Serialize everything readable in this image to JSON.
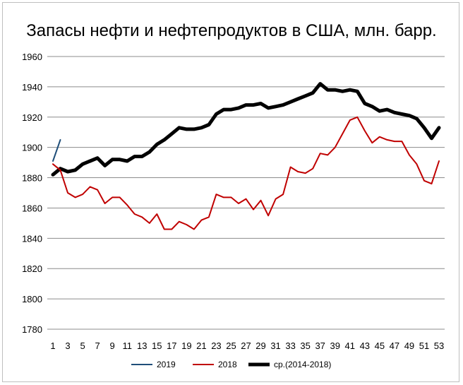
{
  "chart_data": {
    "type": "line",
    "title": "Запасы нефти и нефтепродуктов в США, млн. барр.",
    "xlabel": "",
    "ylabel": "",
    "ylim": [
      1780,
      1960
    ],
    "yticks": [
      1780,
      1800,
      1820,
      1840,
      1860,
      1880,
      1900,
      1920,
      1940,
      1960
    ],
    "xlim": [
      1,
      53
    ],
    "xticks": [
      1,
      3,
      5,
      7,
      9,
      11,
      13,
      15,
      17,
      19,
      21,
      23,
      25,
      27,
      29,
      31,
      33,
      35,
      37,
      39,
      41,
      43,
      45,
      47,
      49,
      51,
      53
    ],
    "grid": true,
    "legend": "bottom",
    "series": [
      {
        "name": "2019",
        "color": "#1f4e79",
        "width": 2,
        "x": [
          1,
          2
        ],
        "values": [
          1891,
          1905
        ]
      },
      {
        "name": "2018",
        "color": "#c00000",
        "width": 2,
        "x": [
          1,
          2,
          3,
          4,
          5,
          6,
          7,
          8,
          9,
          10,
          11,
          12,
          13,
          14,
          15,
          16,
          17,
          18,
          19,
          20,
          21,
          22,
          23,
          24,
          25,
          26,
          27,
          28,
          29,
          30,
          31,
          32,
          33,
          34,
          35,
          36,
          37,
          38,
          39,
          40,
          41,
          42,
          43,
          44,
          45,
          46,
          47,
          48,
          49,
          50,
          51,
          52,
          53
        ],
        "values": [
          1889,
          1885,
          1870,
          1867,
          1869,
          1874,
          1872,
          1863,
          1867,
          1867,
          1862,
          1856,
          1854,
          1850,
          1856,
          1846,
          1846,
          1851,
          1849,
          1846,
          1852,
          1854,
          1869,
          1867,
          1867,
          1863,
          1866,
          1859,
          1865,
          1855,
          1866,
          1869,
          1887,
          1884,
          1883,
          1886,
          1896,
          1895,
          1900,
          1909,
          1918,
          1920,
          1911,
          1903,
          1907,
          1905,
          1904,
          1904,
          1895,
          1889,
          1878,
          1876,
          1891
        ]
      },
      {
        "name": "ср.(2014-2018)",
        "color": "#000000",
        "width": 5,
        "x": [
          1,
          2,
          3,
          4,
          5,
          6,
          7,
          8,
          9,
          10,
          11,
          12,
          13,
          14,
          15,
          16,
          17,
          18,
          19,
          20,
          21,
          22,
          23,
          24,
          25,
          26,
          27,
          28,
          29,
          30,
          31,
          32,
          33,
          34,
          35,
          36,
          37,
          38,
          39,
          40,
          41,
          42,
          43,
          44,
          45,
          46,
          47,
          48,
          49,
          50,
          51,
          52,
          53
        ],
        "values": [
          1882,
          1886,
          1884,
          1885,
          1889,
          1891,
          1893,
          1888,
          1892,
          1892,
          1891,
          1894,
          1894,
          1897,
          1902,
          1905,
          1909,
          1913,
          1912,
          1912,
          1913,
          1915,
          1922,
          1925,
          1925,
          1926,
          1928,
          1928,
          1929,
          1926,
          1927,
          1928,
          1930,
          1932,
          1934,
          1936,
          1942,
          1938,
          1938,
          1937,
          1938,
          1937,
          1929,
          1927,
          1924,
          1925,
          1923,
          1922,
          1921,
          1919,
          1913,
          1906,
          1913
        ]
      }
    ]
  }
}
